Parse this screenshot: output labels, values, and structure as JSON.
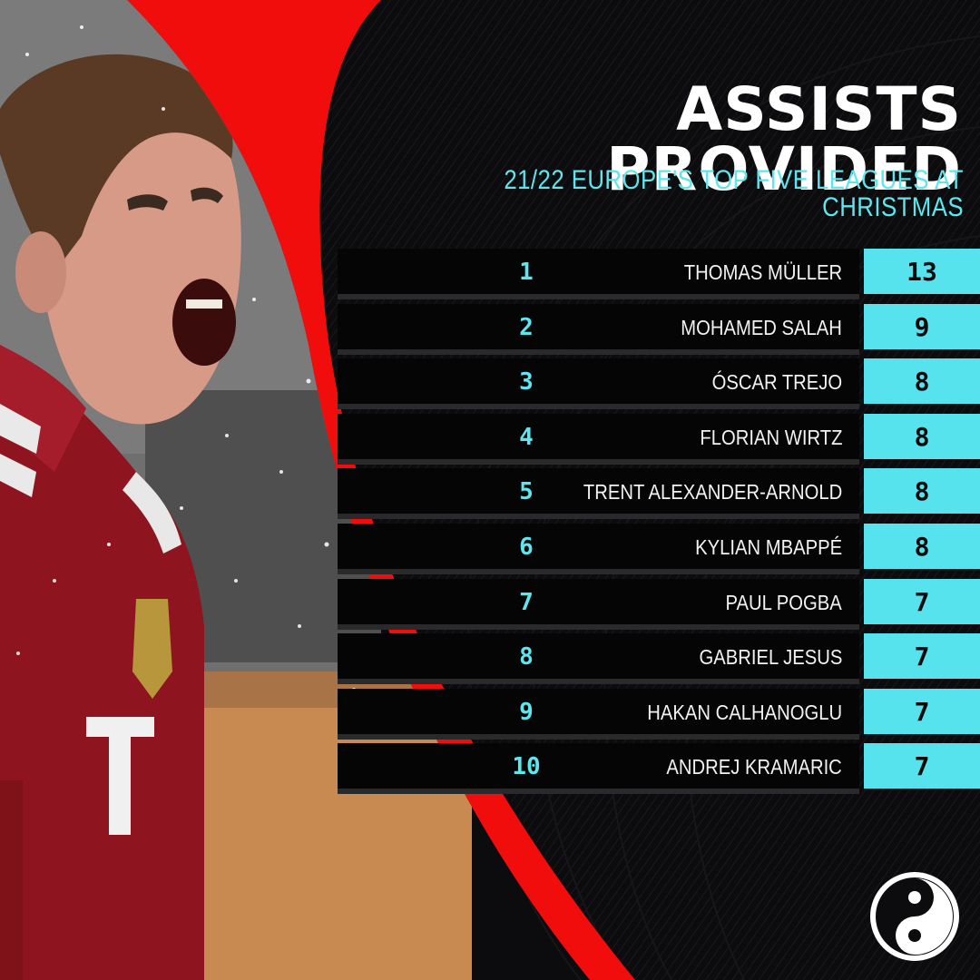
{
  "header": {
    "title": "ASSISTS PROVIDED",
    "subtitle": "21/22 EUROPE'S TOP FIVE LEAGUES AT CHRISTMAS"
  },
  "ranking": [
    {
      "rank": "1",
      "player": "THOMAS MÜLLER",
      "assists": "13"
    },
    {
      "rank": "2",
      "player": "MOHAMED SALAH",
      "assists": "9"
    },
    {
      "rank": "3",
      "player": "ÓSCAR TREJO",
      "assists": "8"
    },
    {
      "rank": "4",
      "player": "FLORIAN WIRTZ",
      "assists": "8"
    },
    {
      "rank": "5",
      "player": "TRENT ALEXANDER-ARNOLD",
      "assists": "8"
    },
    {
      "rank": "6",
      "player": "KYLIAN MBAPPÉ",
      "assists": "8"
    },
    {
      "rank": "7",
      "player": "PAUL POGBA",
      "assists": "7"
    },
    {
      "rank": "8",
      "player": "GABRIEL JESUS",
      "assists": "7"
    },
    {
      "rank": "9",
      "player": "HAKAN CALHANOGLU",
      "assists": "7"
    },
    {
      "rank": "10",
      "player": "ANDREJ KRAMARIC",
      "assists": "7"
    }
  ],
  "colors": {
    "accent": "#5ee6ef",
    "value_box": "#56e3ee",
    "red": "#f20d0d",
    "background": "#0c0c0e",
    "shirt": "#8e1420"
  },
  "icons": {
    "logo": "yin-yang-logo-icon"
  }
}
